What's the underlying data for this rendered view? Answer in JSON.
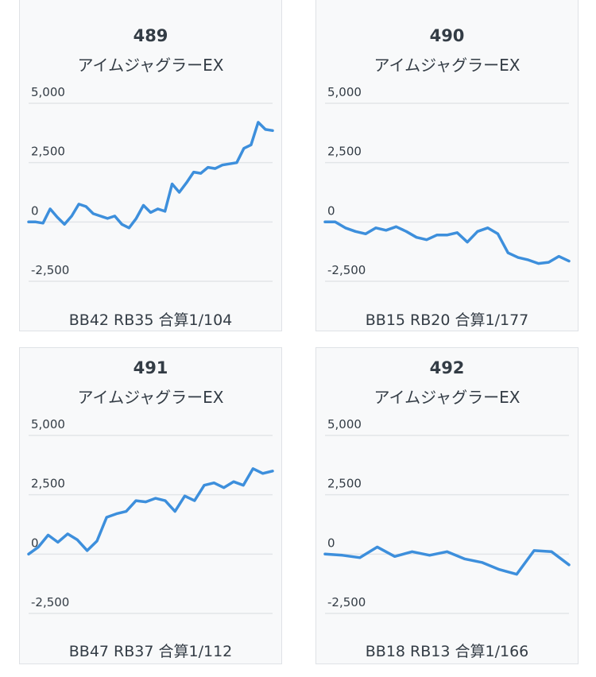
{
  "colors": {
    "line": "#3d8fdc",
    "grid": "#e2e5e8",
    "text": "#333c45",
    "card_bg": "#f8f9fa"
  },
  "cards": [
    {
      "number": "489",
      "machine": "アイムジャグラーEX",
      "summary": "BB42 RB35 合算1/104"
    },
    {
      "number": "490",
      "machine": "アイムジャグラーEX",
      "summary": "BB15 RB20 合算1/177"
    },
    {
      "number": "491",
      "machine": "アイムジャグラーEX",
      "summary": "BB47 RB37 合算1/112"
    },
    {
      "number": "492",
      "machine": "アイムジャグラーEX",
      "summary": "BB18 RB13 合算1/166"
    }
  ],
  "chart_data": [
    {
      "type": "line",
      "title": "489",
      "subtitle": "アイムジャグラーEX",
      "ylim": [
        -2500,
        5000
      ],
      "yticks": [
        5000,
        2500,
        0,
        -2500
      ],
      "ytick_labels": [
        "5,000",
        "2,500",
        "0",
        "-2,500"
      ],
      "grid": true,
      "y": [
        0,
        0,
        -50,
        550,
        200,
        -100,
        250,
        750,
        650,
        350,
        250,
        150,
        250,
        -100,
        -250,
        150,
        700,
        400,
        550,
        450,
        1600,
        1250,
        1650,
        2100,
        2050,
        2300,
        2250,
        2400,
        2450,
        2500,
        3100,
        3250,
        4200,
        3900,
        3850
      ]
    },
    {
      "type": "line",
      "title": "490",
      "subtitle": "アイムジャグラーEX",
      "ylim": [
        -2500,
        5000
      ],
      "yticks": [
        5000,
        2500,
        0,
        -2500
      ],
      "ytick_labels": [
        "5,000",
        "2,500",
        "0",
        "-2,500"
      ],
      "grid": true,
      "y": [
        0,
        0,
        -250,
        -400,
        -500,
        -250,
        -350,
        -200,
        -400,
        -650,
        -750,
        -550,
        -550,
        -450,
        -850,
        -400,
        -250,
        -500,
        -1300,
        -1500,
        -1600,
        -1750,
        -1700,
        -1450,
        -1650
      ]
    },
    {
      "type": "line",
      "title": "491",
      "subtitle": "アイムジャグラーEX",
      "ylim": [
        -2500,
        5000
      ],
      "yticks": [
        5000,
        2500,
        0,
        -2500
      ],
      "ytick_labels": [
        "5,000",
        "2,500",
        "0",
        "-2,500"
      ],
      "grid": true,
      "y": [
        0,
        300,
        800,
        500,
        850,
        600,
        150,
        550,
        1550,
        1700,
        1800,
        2250,
        2200,
        2350,
        2250,
        1800,
        2450,
        2250,
        2900,
        3000,
        2800,
        3050,
        2900,
        3600,
        3400,
        3500
      ]
    },
    {
      "type": "line",
      "title": "492",
      "subtitle": "アイムジャグラーEX",
      "ylim": [
        -2500,
        5000
      ],
      "yticks": [
        5000,
        2500,
        0,
        -2500
      ],
      "ytick_labels": [
        "5,000",
        "2,500",
        "0",
        "-2,500"
      ],
      "grid": true,
      "y": [
        0,
        -50,
        -150,
        300,
        -100,
        100,
        -50,
        100,
        -200,
        -350,
        -650,
        -850,
        150,
        100,
        -450
      ]
    }
  ]
}
